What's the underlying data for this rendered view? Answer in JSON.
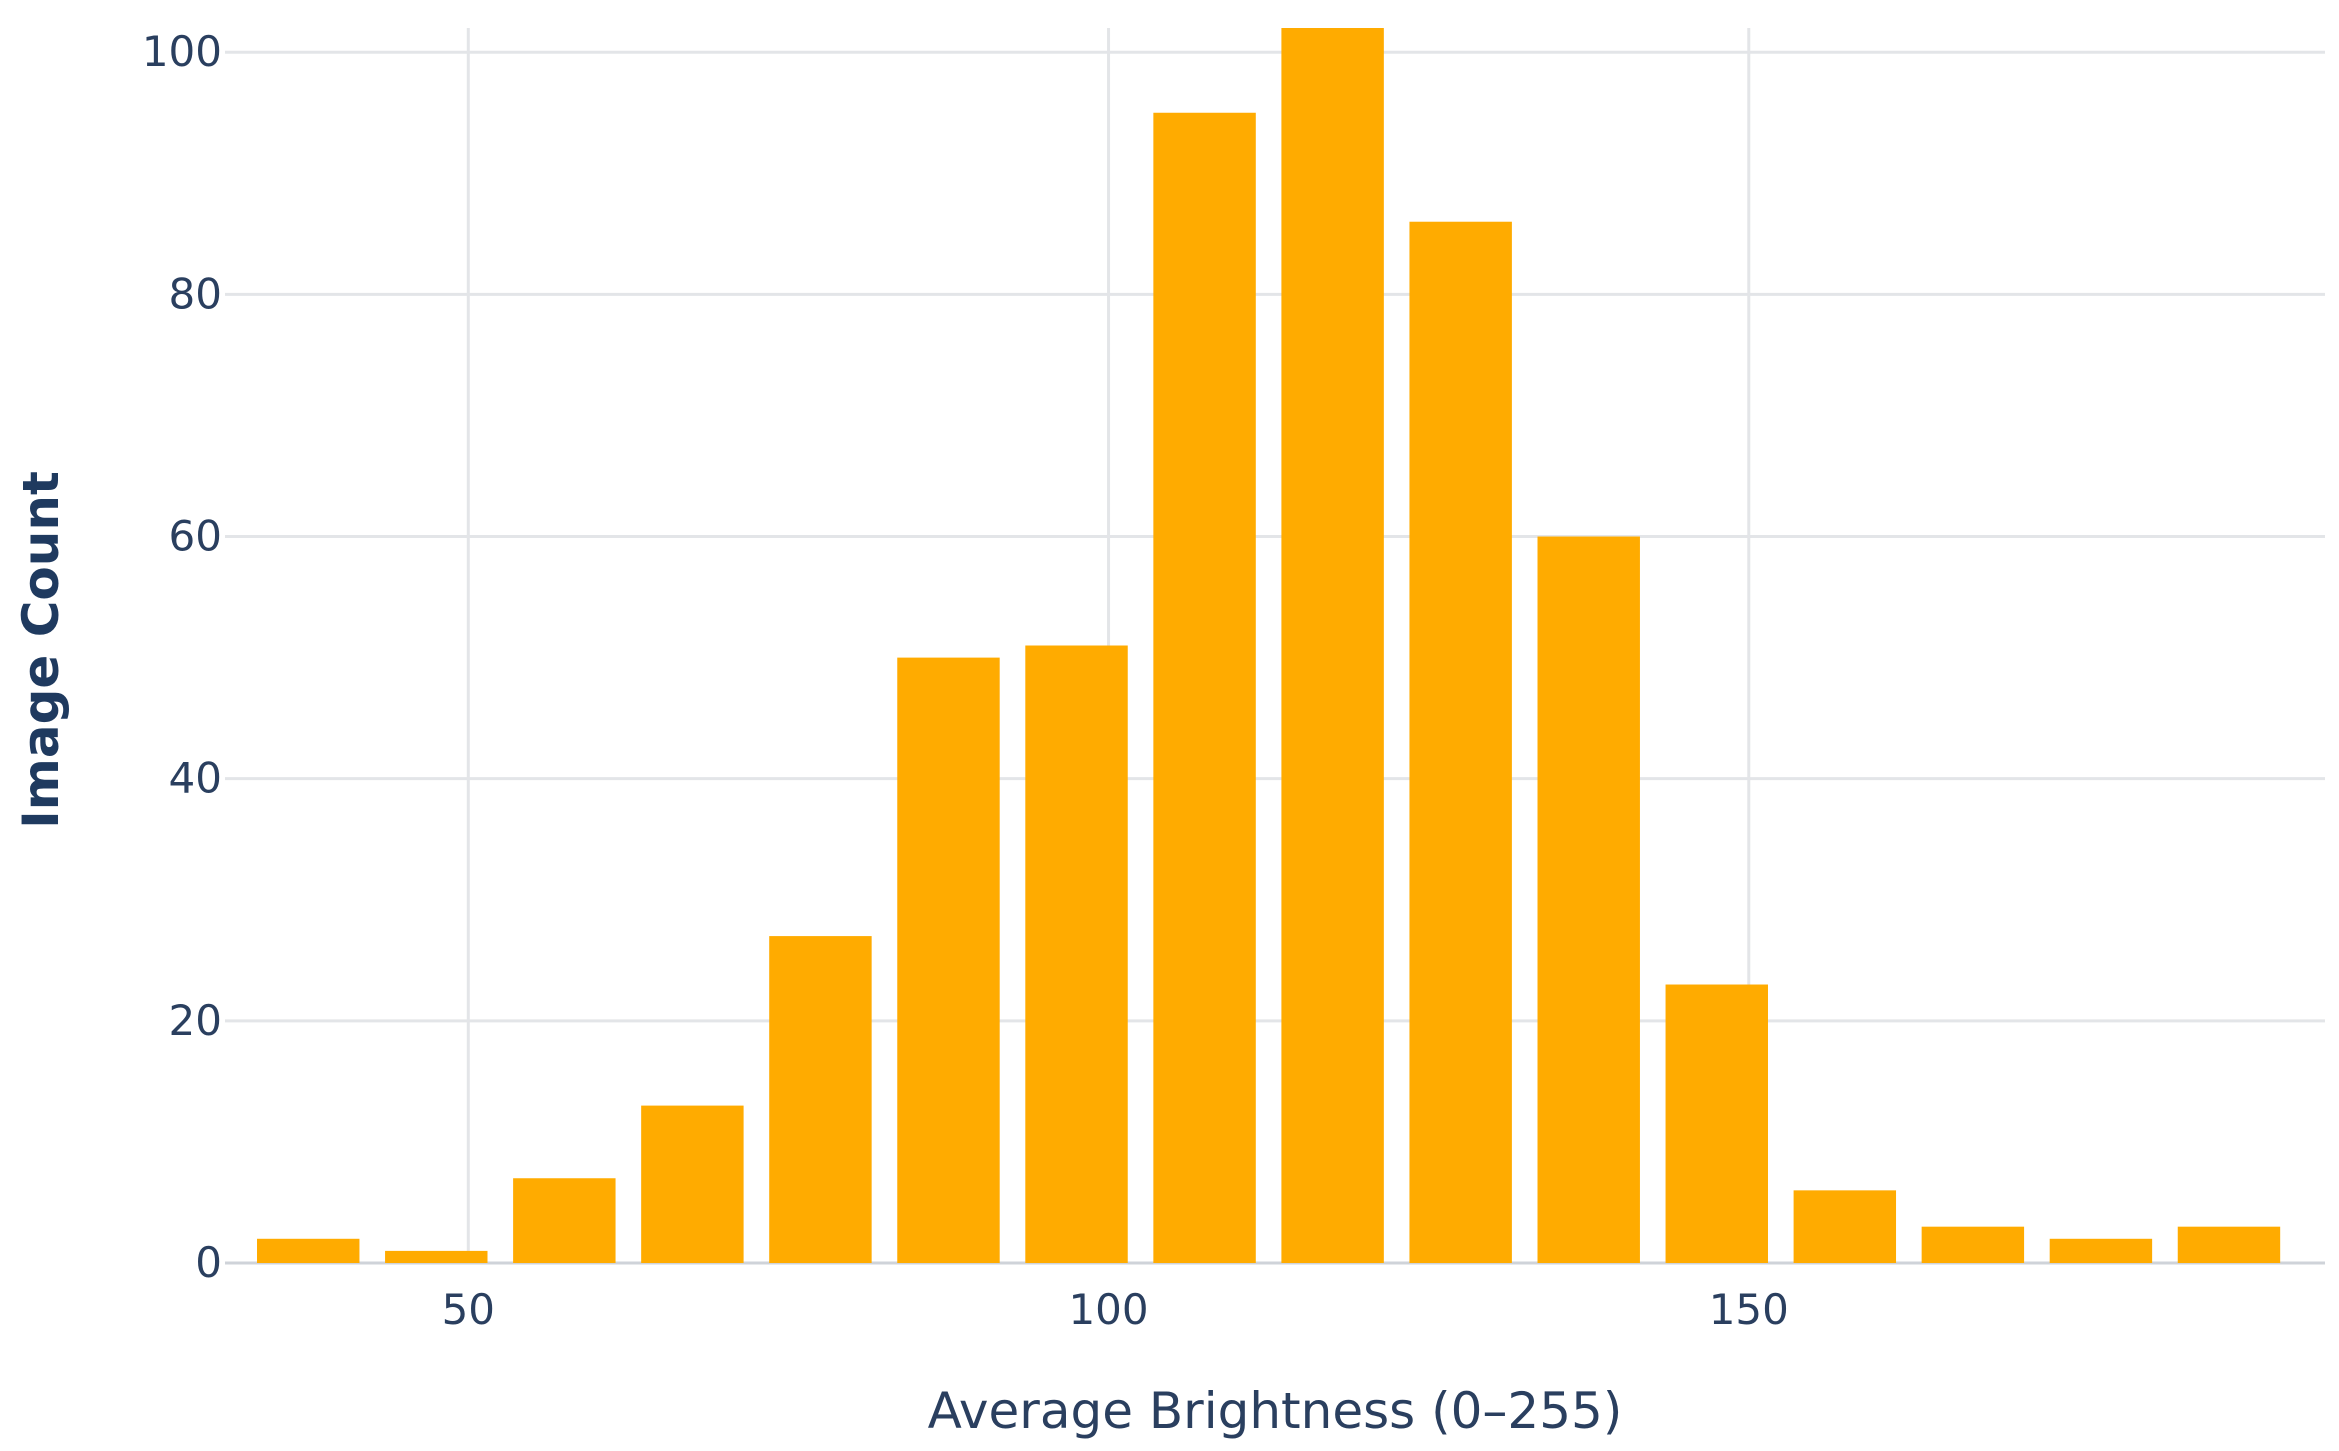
{
  "chart_data": {
    "type": "bar",
    "title": "",
    "xlabel": "Average Brightness (0–255)",
    "ylabel": "Image Count",
    "bar_color": "#ffab00",
    "grid": true,
    "xlim": [
      31,
      195
    ],
    "ylim": [
      0,
      102
    ],
    "x_ticks": [
      50,
      100,
      150
    ],
    "y_ticks": [
      0,
      20,
      40,
      60,
      80,
      100
    ],
    "bin_width": 10,
    "x": [
      37.5,
      47.5,
      57.5,
      67.5,
      77.5,
      87.5,
      97.5,
      107.5,
      117.5,
      127.5,
      137.5,
      147.5,
      157.5,
      167.5,
      177.5,
      187.5
    ],
    "values": [
      2,
      1,
      7,
      13,
      27,
      50,
      51,
      95,
      102,
      86,
      60,
      23,
      6,
      3,
      2,
      3
    ]
  }
}
